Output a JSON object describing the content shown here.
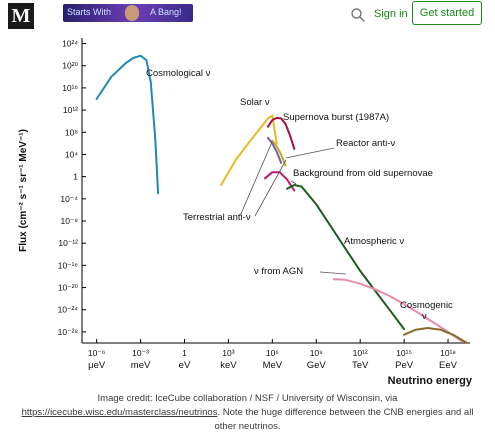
{
  "header": {
    "logo_text": "M",
    "banner_left": "Starts With",
    "banner_right": "A Bang!",
    "signin_label": "Sign in",
    "get_started_label": "Get started",
    "accent_color": "#1a8917"
  },
  "chart_data": {
    "type": "line",
    "title": "",
    "xlabel": "Neutrino energy",
    "ylabel": "Flux (cm⁻² s⁻¹ sr⁻¹ MeV⁻¹)",
    "x_scale": "log",
    "y_scale": "log",
    "x_ticks": [
      {
        "label": "10⁻⁶",
        "unit": "μeV",
        "exp": -6
      },
      {
        "label": "10⁻³",
        "unit": "meV",
        "exp": -3
      },
      {
        "label": "1",
        "unit": "eV",
        "exp": 0
      },
      {
        "label": "10³",
        "unit": "keV",
        "exp": 3
      },
      {
        "label": "10⁶",
        "unit": "MeV",
        "exp": 6
      },
      {
        "label": "10⁹",
        "unit": "GeV",
        "exp": 9
      },
      {
        "label": "10¹²",
        "unit": "TeV",
        "exp": 12
      },
      {
        "label": "10¹⁵",
        "unit": "PeV",
        "exp": 15
      },
      {
        "label": "10¹⁸",
        "unit": "EeV",
        "exp": 18
      }
    ],
    "y_ticks": [
      {
        "label": "10²⁴",
        "exp": 24
      },
      {
        "label": "10²⁰",
        "exp": 20
      },
      {
        "label": "10¹⁶",
        "exp": 16
      },
      {
        "label": "10¹²",
        "exp": 12
      },
      {
        "label": "10⁸",
        "exp": 8
      },
      {
        "label": "10⁴",
        "exp": 4
      },
      {
        "label": "1",
        "exp": 0
      },
      {
        "label": "10⁻⁴",
        "exp": -4
      },
      {
        "label": "10⁻⁸",
        "exp": -8
      },
      {
        "label": "10⁻¹²",
        "exp": -12
      },
      {
        "label": "10⁻¹⁶",
        "exp": -16
      },
      {
        "label": "10⁻²⁰",
        "exp": -20
      },
      {
        "label": "10⁻²⁴",
        "exp": -24
      },
      {
        "label": "10⁻²⁸",
        "exp": -28
      }
    ],
    "xlim_exp": [
      -7,
      19.5
    ],
    "ylim_exp": [
      -30,
      25
    ],
    "series": [
      {
        "name": "Cosmological ν",
        "color": "#1f8ab0",
        "log_x": [
          -6.0,
          -5.0,
          -4.0,
          -3.5,
          -3.0,
          -2.6,
          -2.3,
          -2.0,
          -1.8
        ],
        "log_y": [
          14.0,
          18.0,
          20.5,
          21.4,
          21.8,
          21.0,
          17.0,
          7.0,
          -3.0
        ]
      },
      {
        "name": "Solar ν",
        "color": "#e8b82a",
        "log_x": [
          2.5,
          3.5,
          4.5,
          5.2,
          5.7,
          6.0,
          6.3
        ],
        "log_y": [
          -1.5,
          3.0,
          6.5,
          8.8,
          10.5,
          11.0,
          6.0
        ]
      },
      {
        "name": "Supernova burst (1987A)",
        "color": "#a3133a",
        "log_x": [
          5.7,
          6.0,
          6.3,
          6.6,
          6.9,
          7.2,
          7.5
        ],
        "log_y": [
          9.0,
          10.2,
          10.6,
          10.5,
          9.5,
          7.5,
          5.0
        ]
      },
      {
        "name": "Reactor anti-ν",
        "color": "#b8b020",
        "log_x": [
          6.0,
          6.3,
          6.6,
          6.9
        ],
        "log_y": [
          6.5,
          5.5,
          4.0,
          2.0
        ]
      },
      {
        "name": "Terrestrial anti-ν",
        "color": "#7a5aa0",
        "log_x": [
          5.7,
          6.0,
          6.3,
          6.6
        ],
        "log_y": [
          7.0,
          6.0,
          4.5,
          2.5
        ]
      },
      {
        "name": "Background from old supernovae",
        "color": "#c0186a",
        "log_x": [
          5.5,
          6.0,
          6.5,
          7.0,
          7.5
        ],
        "log_y": [
          -0.3,
          0.8,
          0.8,
          -0.5,
          -2.5
        ]
      },
      {
        "name": "Atmospheric ν",
        "color": "#1e5a22",
        "log_x": [
          7.0,
          7.5,
          8.0,
          9.0,
          10.0,
          11.0,
          12.0,
          13.0,
          14.0,
          15.0
        ],
        "log_y": [
          -2.2,
          -1.5,
          -1.8,
          -5.0,
          -9.0,
          -13.0,
          -17.0,
          -20.5,
          -24.0,
          -27.5
        ]
      },
      {
        "name": "ν from AGN",
        "color": "#e58fa6",
        "log_x": [
          10.2,
          11.0,
          12.0,
          13.0,
          14.0,
          15.0,
          16.0,
          17.0,
          18.0,
          19.0
        ],
        "log_y": [
          -18.5,
          -18.6,
          -19.3,
          -20.3,
          -21.5,
          -23.0,
          -24.6,
          -26.3,
          -28.0,
          -29.8
        ]
      },
      {
        "name": "Cosmogenic ν",
        "color": "#8a6a2a",
        "log_x": [
          15.0,
          15.8,
          16.6,
          17.5,
          18.4,
          19.3
        ],
        "log_y": [
          -28.5,
          -27.6,
          -27.3,
          -27.6,
          -28.6,
          -30.0
        ]
      }
    ],
    "annotations": [
      {
        "text": "Cosmological ν"
      },
      {
        "text": "Solar ν"
      },
      {
        "text": "Supernova burst (1987A)"
      },
      {
        "text": "Reactor anti-ν"
      },
      {
        "text": "Background from old supernovae"
      },
      {
        "text": "Terrestrial anti-ν"
      },
      {
        "text": "Atmospheric ν"
      },
      {
        "text": "ν from AGN"
      },
      {
        "text": "Cosmogenic ν"
      }
    ]
  },
  "caption": {
    "line1": "Image credit: IceCube collaboration / NSF / University of Wisconsin, via",
    "link": "https://icecube.wisc.edu/masterclass/neutrinos",
    "line2": ". Note the huge difference between the CNB energies and all other neutrinos."
  }
}
